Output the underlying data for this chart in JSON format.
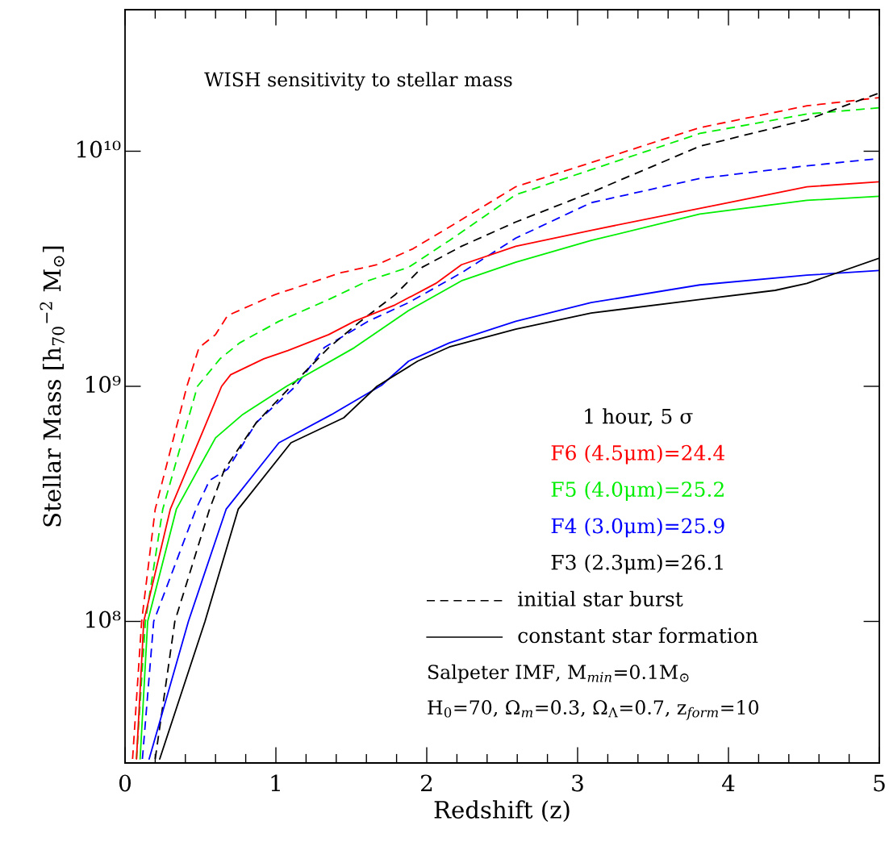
{
  "chart_data": {
    "type": "line",
    "title": "WISH sensitivity to stellar mass",
    "xlabel": "Redshift (z)",
    "ylabel": "Stellar Mass [h$_{70}$$^{−2}$ M$_{⊙}$]",
    "legend_title": "1 hour, 5 σ",
    "log": "y",
    "xlim": [
      0,
      5
    ],
    "ylim": [
      25000000.0,
      40000000000.0
    ],
    "xticks": [
      0,
      1,
      2,
      3,
      4,
      5
    ],
    "yticks": [
      {
        "value": 100000000.0,
        "label": "10⁸"
      },
      {
        "value": 1000000000.0,
        "label": "10⁹"
      },
      {
        "value": 10000000000.0,
        "label": "10¹⁰"
      }
    ],
    "grid": false,
    "legend": "bottom right",
    "marker": "none",
    "series": [
      {
        "name": "F6 (4.5μm)=24.4",
        "color": "#ff0000",
        "line_style": "dashed",
        "x": [
          0.05,
          0.11,
          0.2,
          0.41,
          0.49,
          0.6,
          0.68,
          0.84,
          0.99,
          1.43,
          1.67,
          1.91,
          2.15,
          2.59,
          3.09,
          3.81,
          4.52,
          5.0
        ],
        "values": [
          26000000.0,
          100000000.0,
          300000000.0,
          1000000000.0,
          1460000000.0,
          1660000000.0,
          2000000000.0,
          2220000000.0,
          2450000000.0,
          3040000000.0,
          3290000000.0,
          3850000000.0,
          4760000000.0,
          7060000000.0,
          8950000000.0,
          12600000000.0,
          15600000000.0,
          16900000000.0
        ]
      },
      {
        "name": "F5 (4.0μm)=25.2",
        "color": "#00ee00",
        "line_style": "dashed",
        "x": [
          0.076,
          0.135,
          0.25,
          0.48,
          0.63,
          0.76,
          1.02,
          1.35,
          1.61,
          1.88,
          2.15,
          2.59,
          3.09,
          3.81,
          4.52,
          5.0
        ],
        "values": [
          26000000.0,
          100000000.0,
          300000000.0,
          1000000000.0,
          1310000000.0,
          1530000000.0,
          1890000000.0,
          2340000000.0,
          2810000000.0,
          3210000000.0,
          4170000000.0,
          6530000000.0,
          8340000000.0,
          11900000000.0,
          14400000000.0,
          15300000000.0
        ]
      },
      {
        "name": "F4 (3.0μm)=25.9",
        "color": "#0000ff",
        "line_style": "dashed",
        "x": [
          0.115,
          0.19,
          0.47,
          0.56,
          0.68,
          0.87,
          1.13,
          1.32,
          1.61,
          1.88,
          2.23,
          2.59,
          3.09,
          3.81,
          4.52,
          5.0
        ],
        "values": [
          26000000.0,
          100000000.0,
          300000000.0,
          398000000.0,
          444000000.0,
          701000000.0,
          1000000000.0,
          1460000000.0,
          1890000000.0,
          2270000000.0,
          3040000000.0,
          4270000000.0,
          6040000000.0,
          7660000000.0,
          8670000000.0,
          9310000000.0
        ]
      },
      {
        "name": "F3 (2.3μm)=26.1",
        "color": "#000000",
        "line_style": "dashed",
        "x": [
          0.2,
          0.33,
          0.56,
          0.66,
          0.87,
          1.1,
          1.35,
          1.56,
          1.79,
          1.97,
          2.23,
          2.59,
          3.09,
          3.81,
          4.52,
          5.0
        ],
        "values": [
          26000000.0,
          100000000.0,
          300000000.0,
          444000000.0,
          701000000.0,
          1000000000.0,
          1460000000.0,
          1890000000.0,
          2450000000.0,
          3210000000.0,
          3940000000.0,
          5000000000.0,
          6680000000.0,
          10500000000.0,
          13600000000.0,
          17700000000.0
        ]
      },
      {
        "color": "#ff0000",
        "line_style": "solid",
        "x": [
          0.076,
          0.124,
          0.3,
          0.64,
          0.7,
          0.92,
          1.08,
          1.35,
          1.52,
          1.79,
          2.06,
          2.23,
          2.59,
          3.09,
          3.81,
          4.52,
          5.0
        ],
        "values": [
          26000000.0,
          100000000.0,
          300000000.0,
          1000000000.0,
          1120000000.0,
          1310000000.0,
          1420000000.0,
          1660000000.0,
          1890000000.0,
          2220000000.0,
          2740000000.0,
          3290000000.0,
          3940000000.0,
          4610000000.0,
          5710000000.0,
          7060000000.0,
          7410000000.0
        ]
      },
      {
        "color": "#00ee00",
        "line_style": "solid",
        "x": [
          0.1,
          0.15,
          0.34,
          0.6,
          0.78,
          1.07,
          1.52,
          1.88,
          2.23,
          2.59,
          3.09,
          3.81,
          4.52,
          5.0
        ],
        "values": [
          26000000.0,
          100000000.0,
          300000000.0,
          604000000.0,
          759000000.0,
          1000000000.0,
          1460000000.0,
          2100000000.0,
          2810000000.0,
          3370000000.0,
          4170000000.0,
          5410000000.0,
          6180000000.0,
          6430000000.0
        ]
      },
      {
        "color": "#0000ff",
        "line_style": "solid",
        "x": [
          0.16,
          0.42,
          0.67,
          1.02,
          1.37,
          1.7,
          1.88,
          2.15,
          2.59,
          3.09,
          3.81,
          4.52,
          5.0
        ],
        "values": [
          26000000.0,
          100000000.0,
          300000000.0,
          575000000.0,
          759000000.0,
          1010000000.0,
          1280000000.0,
          1530000000.0,
          1890000000.0,
          2270000000.0,
          2700000000.0,
          2970000000.0,
          3110000000.0
        ]
      },
      {
        "color": "#000000",
        "line_style": "solid",
        "x": [
          0.23,
          0.53,
          0.75,
          1.1,
          1.45,
          1.67,
          1.94,
          2.15,
          2.59,
          3.09,
          3.81,
          4.31,
          4.52,
          5.0
        ],
        "values": [
          26000000.0,
          100000000.0,
          300000000.0,
          575000000.0,
          735000000.0,
          1000000000.0,
          1280000000.0,
          1470000000.0,
          1750000000.0,
          2050000000.0,
          2340000000.0,
          2560000000.0,
          2740000000.0,
          3510000000.0
        ]
      }
    ],
    "annotations": [
      "initial star burst",
      "constant star formation",
      "Salpeter IMF, M$_{min}$=0.1M$_{⊙}$",
      "H$_{0}$=70, Ω$_{m}$=0.3, Ω$_{Λ}$=0.7, z$_{form}$=10"
    ]
  }
}
